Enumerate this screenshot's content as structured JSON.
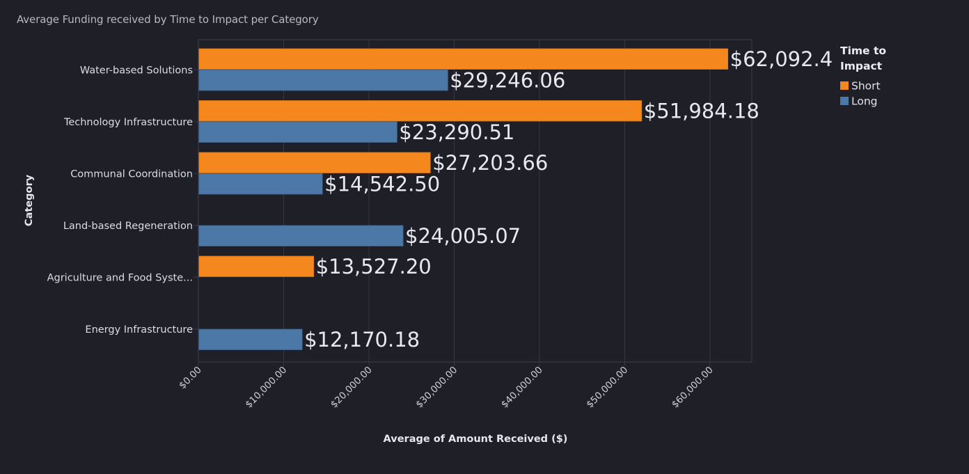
{
  "chart_data": {
    "type": "bar",
    "orientation": "horizontal",
    "title": "Average Funding received by Time to Impact per Category",
    "xlabel": "Average of Amount Received ($)",
    "ylabel": "Category",
    "xlim": [
      0,
      65000
    ],
    "x_ticks": [
      0,
      10000,
      20000,
      30000,
      40000,
      50000,
      60000
    ],
    "x_tick_labels": [
      "$0.00",
      "$10,000.00",
      "$20,000.00",
      "$30,000.00",
      "$40,000.00",
      "$50,000.00",
      "$60,000.00"
    ],
    "grid": true,
    "categories": [
      "Water-based Solutions",
      "Technology Infrastructure",
      "Communal Coordination",
      "Land-based Regeneration",
      "Agriculture and Food Syste...",
      "Energy Infrastructure"
    ],
    "legend": {
      "title": "Time to Impact",
      "title_lines": [
        "Time to",
        "Impact"
      ],
      "position": "top-right"
    },
    "series": [
      {
        "name": "Short",
        "color": "#f5871f",
        "values": [
          62092.41,
          51984.18,
          27203.66,
          null,
          13527.2,
          null
        ],
        "labels": [
          "$62,092.41",
          "$51,984.18",
          "$27,203.66",
          "",
          "$13,527.20",
          ""
        ]
      },
      {
        "name": "Long",
        "color": "#4c78a8",
        "values": [
          29246.06,
          23290.51,
          14542.5,
          24005.07,
          null,
          12170.18
        ],
        "labels": [
          "$29,246.06",
          "$23,290.51",
          "$14,542.50",
          "$24,005.07",
          "",
          "$12,170.18"
        ]
      }
    ]
  }
}
